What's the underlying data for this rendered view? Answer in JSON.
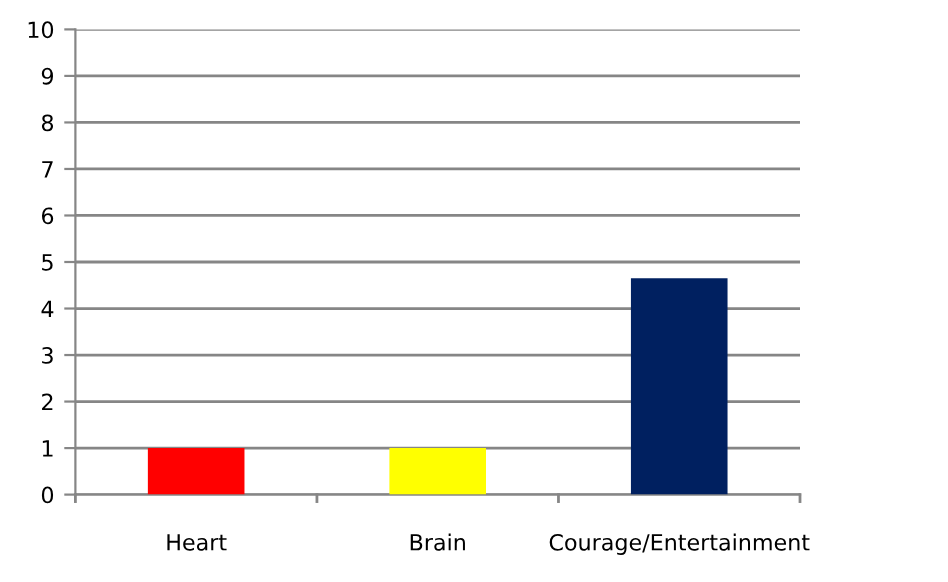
{
  "chart_data": {
    "type": "bar",
    "categories": [
      "Heart",
      "Brain",
      "Courage/Entertainment"
    ],
    "values": [
      1,
      1,
      4.65
    ],
    "colors": [
      "#ff0000",
      "#ffff00",
      "#002060"
    ],
    "ylim": [
      0,
      10
    ],
    "yticks": [
      0,
      1,
      2,
      3,
      4,
      5,
      6,
      7,
      8,
      9,
      10
    ],
    "grid": "y",
    "legend": false
  }
}
